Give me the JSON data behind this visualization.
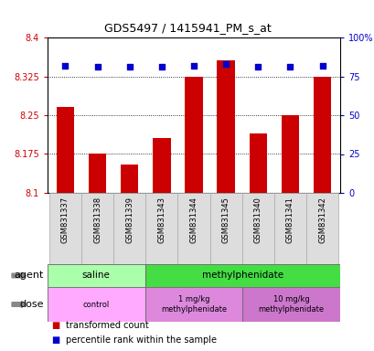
{
  "title": "GDS5497 / 1415941_PM_s_at",
  "samples": [
    "GSM831337",
    "GSM831338",
    "GSM831339",
    "GSM831343",
    "GSM831344",
    "GSM831345",
    "GSM831340",
    "GSM831341",
    "GSM831342"
  ],
  "bar_values": [
    8.265,
    8.175,
    8.155,
    8.205,
    8.325,
    8.355,
    8.215,
    8.25,
    8.325
  ],
  "percentile_values": [
    82,
    81,
    81,
    81,
    82,
    83,
    81,
    81,
    82
  ],
  "ymin": 8.1,
  "ymax": 8.4,
  "yticks": [
    8.1,
    8.175,
    8.25,
    8.325,
    8.4
  ],
  "ytick_labels": [
    "8.1",
    "8.175",
    "8.25",
    "8.325",
    "8.4"
  ],
  "right_yticks": [
    0,
    25,
    50,
    75,
    100
  ],
  "right_ytick_labels": [
    "0",
    "25",
    "50",
    "75",
    "100%"
  ],
  "bar_color": "#cc0000",
  "dot_color": "#0000cc",
  "agent_groups": [
    {
      "label": "saline",
      "start": 0,
      "end": 3,
      "color": "#aaffaa"
    },
    {
      "label": "methylphenidate",
      "start": 3,
      "end": 9,
      "color": "#44dd44"
    }
  ],
  "dose_groups": [
    {
      "label": "control",
      "start": 0,
      "end": 3,
      "color": "#ffaaff"
    },
    {
      "label": "1 mg/kg\nmethylphenidate",
      "start": 3,
      "end": 6,
      "color": "#dd88dd"
    },
    {
      "label": "10 mg/kg\nmethylphenidate",
      "start": 6,
      "end": 9,
      "color": "#cc77cc"
    }
  ],
  "legend_items": [
    {
      "label": "transformed count",
      "color": "#cc0000"
    },
    {
      "label": "percentile rank within the sample",
      "color": "#0000cc"
    }
  ],
  "axis_color_left": "#cc0000",
  "axis_color_right": "#0000cc",
  "sample_bg_color": "#dddddd",
  "sample_border_color": "#aaaaaa"
}
